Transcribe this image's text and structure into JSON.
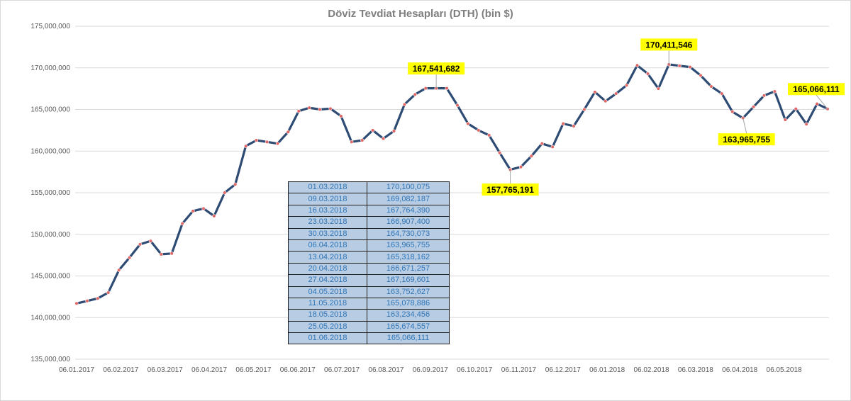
{
  "chart_data": {
    "type": "line",
    "title": "Döviz Tevdiat Hesapları (DTH) (bin $)",
    "xlabel": "",
    "ylabel": "",
    "ylim": [
      135000000,
      175000000
    ],
    "grid": true,
    "legend": "none",
    "y_tick_labels": [
      "135,000,000",
      "140,000,000",
      "145,000,000",
      "150,000,000",
      "155,000,000",
      "160,000,000",
      "165,000,000",
      "170,000,000",
      "175,000,000"
    ],
    "x_tick_labels": [
      "06.01.2017",
      "06.02.2017",
      "06.03.2017",
      "06.04.2017",
      "06.05.2017",
      "06.06.2017",
      "06.07.2017",
      "06.08.2017",
      "06.09.2017",
      "06.10.2017",
      "06.11.2017",
      "06.12.2017",
      "06.01.2018",
      "06.02.2018",
      "06.03.2018",
      "06.04.2018",
      "06.05.2018"
    ],
    "series": [
      {
        "values": [
          141700000,
          142000000,
          142300000,
          143000000,
          145700000,
          147200000,
          148800000,
          149200000,
          147600000,
          147700000,
          151300000,
          152800000,
          153100000,
          152200000,
          155000000,
          156000000,
          160600000,
          161300000,
          161100000,
          160900000,
          162300000,
          164800000,
          165200000,
          165000000,
          165100000,
          164200000,
          161100000,
          161300000,
          162500000,
          161500000,
          162400000,
          165600000,
          166800000,
          167541682,
          167541682,
          167541682,
          165500000,
          163300000,
          162500000,
          161900000,
          159800000,
          157765191,
          158100000,
          159400000,
          160900000,
          160500000,
          163300000,
          163000000,
          165000000,
          167100000,
          166000000,
          166900000,
          167900000,
          170300000,
          169300000,
          167500000,
          170411546,
          170250000,
          170100075,
          169082187,
          167764390,
          166907400,
          164730073,
          163965755,
          165318162,
          166671257,
          167169601,
          163752627,
          165078886,
          163234456,
          165674557,
          165066111
        ]
      }
    ],
    "callouts": [
      {
        "label": "167,541,682",
        "index": 34
      },
      {
        "label": "157,765,191",
        "index": 41
      },
      {
        "label": "170,411,546",
        "index": 56
      },
      {
        "label": "163,965,755",
        "index": 63
      },
      {
        "label": "165,066,111",
        "index": 71
      }
    ],
    "table": [
      {
        "date": "01.03.2018",
        "value": "170,100,075"
      },
      {
        "date": "09.03.2018",
        "value": "169,082,187"
      },
      {
        "date": "16.03.2018",
        "value": "167,764,390"
      },
      {
        "date": "23.03.2018",
        "value": "166,907,400"
      },
      {
        "date": "30.03.2018",
        "value": "164,730,073"
      },
      {
        "date": "06.04.2018",
        "value": "163,965,755"
      },
      {
        "date": "13.04.2018",
        "value": "165,318,162"
      },
      {
        "date": "20.04.2018",
        "value": "166,671,257"
      },
      {
        "date": "27.04.2018",
        "value": "167,169,601"
      },
      {
        "date": "04.05.2018",
        "value": "163,752,627"
      },
      {
        "date": "11.05.2018",
        "value": "165,078,886"
      },
      {
        "date": "18.05.2018",
        "value": "163,234,456"
      },
      {
        "date": "25.05.2018",
        "value": "165,674,557"
      },
      {
        "date": "01.06.2018",
        "value": "165,066,111"
      }
    ],
    "colors": {
      "line": "#2e4b73",
      "marker": "#e06666",
      "grid": "#d9d9d9",
      "callout_bg": "#ffff00",
      "table_bg": "#b8cce4",
      "table_text": "#2e75b6"
    }
  }
}
